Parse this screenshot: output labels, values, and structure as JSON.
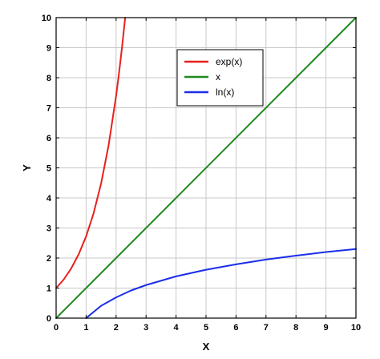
{
  "chart_data": {
    "type": "line",
    "title": "",
    "xlabel": "X",
    "ylabel": "Y",
    "xlim": [
      0,
      10
    ],
    "ylim": [
      0,
      10
    ],
    "x_ticks": [
      "0",
      "1",
      "2",
      "3",
      "4",
      "5",
      "6",
      "7",
      "8",
      "9",
      "10"
    ],
    "y_ticks": [
      "0",
      "1",
      "2",
      "3",
      "4",
      "5",
      "6",
      "7",
      "8",
      "9",
      "10"
    ],
    "grid": true,
    "legend_position": "top-center",
    "series": [
      {
        "name": "exp(x)",
        "color": "#e8201c",
        "x": [
          0,
          0.25,
          0.5,
          0.75,
          1,
          1.25,
          1.5,
          1.75,
          2,
          2.1,
          2.2,
          2.303
        ],
        "y": [
          1,
          1.28,
          1.65,
          2.12,
          2.72,
          3.49,
          4.48,
          5.75,
          7.39,
          8.17,
          9.03,
          10
        ]
      },
      {
        "name": "x",
        "color": "#1e8a1e",
        "x": [
          0,
          10
        ],
        "y": [
          0,
          10
        ]
      },
      {
        "name": "ln(x)",
        "color": "#1c2ee8",
        "x": [
          1,
          1.5,
          2,
          2.5,
          3,
          4,
          5,
          6,
          7,
          8,
          9,
          10
        ],
        "y": [
          0,
          0.41,
          0.69,
          0.92,
          1.1,
          1.39,
          1.61,
          1.79,
          1.95,
          2.08,
          2.2,
          2.3
        ]
      }
    ]
  }
}
